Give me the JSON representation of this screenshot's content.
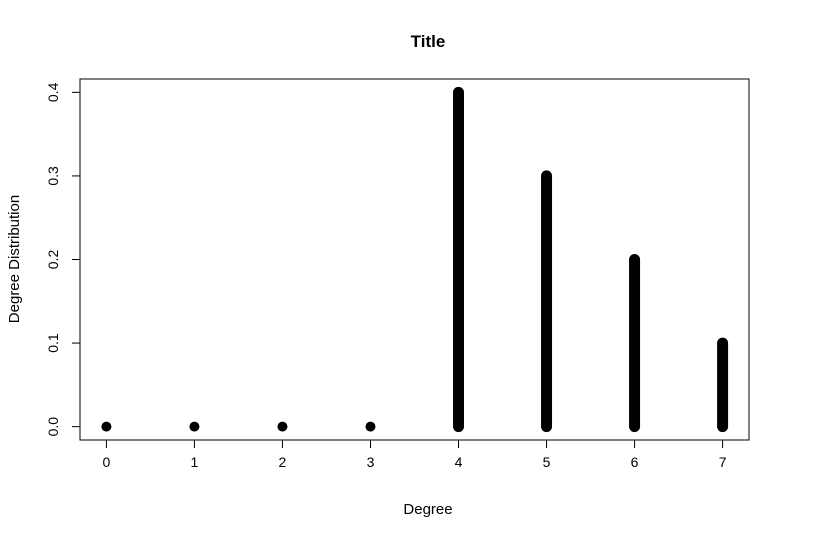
{
  "chart_data": {
    "type": "scatter",
    "title": "Title",
    "xlabel": "Degree",
    "ylabel": "Degree Distribution",
    "xlim": [
      -0.3,
      7.3
    ],
    "ylim": [
      -0.016,
      0.416
    ],
    "x_ticks": [
      "0",
      "1",
      "2",
      "3",
      "4",
      "5",
      "6",
      "7"
    ],
    "y_ticks": [
      "0.0",
      "0.1",
      "0.2",
      "0.3",
      "0.4"
    ],
    "x_tick_values": [
      0,
      1,
      2,
      3,
      4,
      5,
      6,
      7
    ],
    "y_tick_values": [
      0,
      0.1,
      0.2,
      0.3,
      0.4
    ],
    "grid": false,
    "marker_color": "#000000",
    "series": [
      {
        "x": [
          0,
          1,
          2,
          3,
          4,
          5,
          6,
          7
        ],
        "y_max": [
          0,
          0,
          0,
          0,
          0.4,
          0.3,
          0.2,
          0.1
        ],
        "y_min": [
          0,
          0,
          0,
          0,
          0,
          0,
          0,
          0
        ]
      }
    ]
  }
}
